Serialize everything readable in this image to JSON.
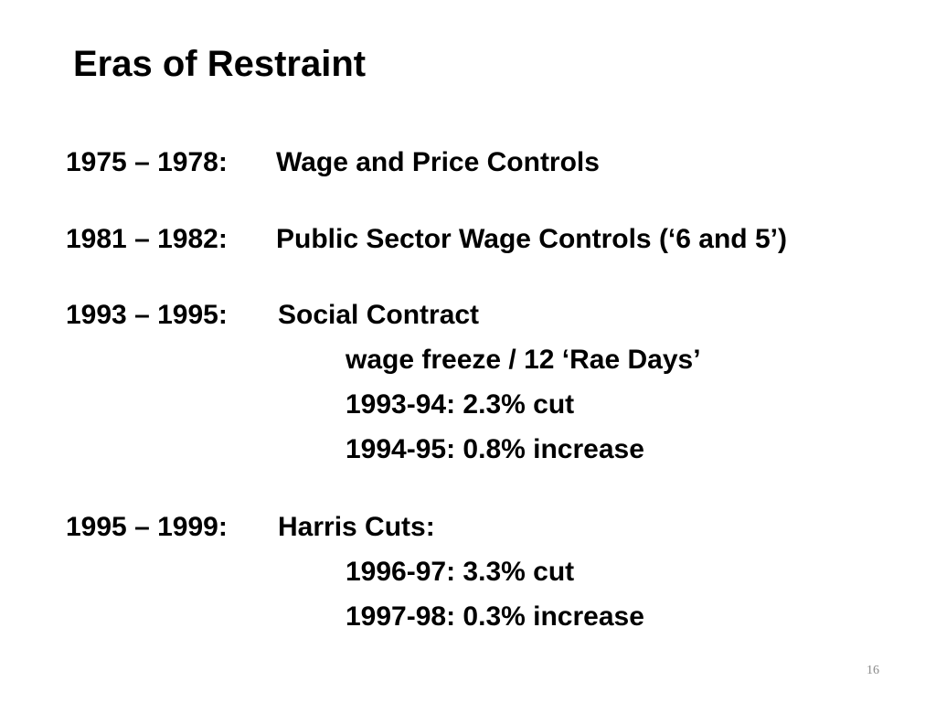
{
  "slide": {
    "title": "Eras of Restraint",
    "page_number": "16"
  },
  "eras": [
    {
      "years": "1975 – 1978:",
      "title": "Wage and Price Controls",
      "details": []
    },
    {
      "years": "1981 – 1982:",
      "title": "Public Sector Wage Controls (‘6 and 5’)",
      "details": []
    },
    {
      "years": "1993 – 1995:",
      "title": "Social Contract",
      "details": [
        "wage freeze / 12 ‘Rae Days’",
        "1993-94: 2.3% cut",
        "1994-95: 0.8% increase"
      ]
    },
    {
      "years": "1995 – 1999:",
      "title": "Harris Cuts:",
      "details": [
        "1996-97: 3.3% cut",
        "1997-98: 0.3% increase"
      ]
    }
  ]
}
